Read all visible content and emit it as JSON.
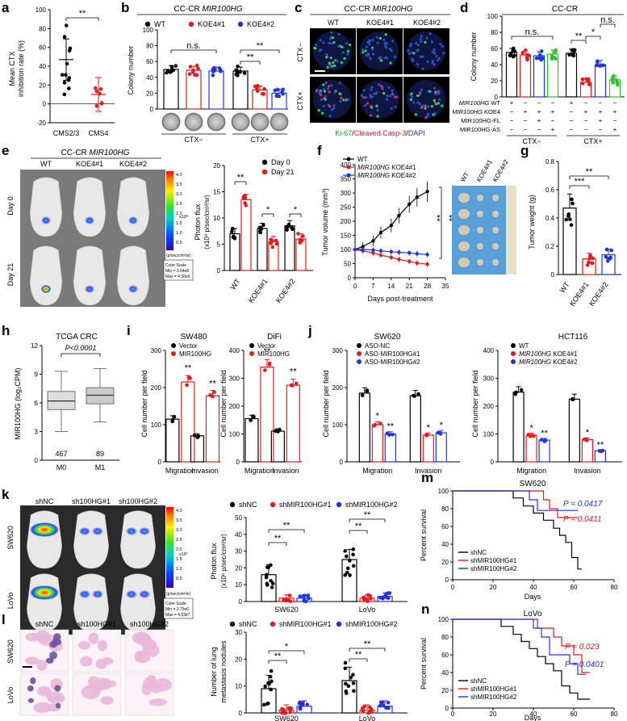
{
  "panels": {
    "a": "a",
    "b": "b",
    "c": "c",
    "d": "d",
    "e": "e",
    "f": "f",
    "g": "g",
    "h": "h",
    "i": "i",
    "j": "j",
    "k": "k",
    "l": "l",
    "m": "m",
    "n": "n"
  },
  "colors": {
    "wt": "#000000",
    "koe1": "#e8191c",
    "koe2": "#2233dd",
    "green": "#30c030",
    "shnc": "#000000",
    "sh1": "#e8191c",
    "sh2": "#2233dd",
    "fl_green": "#39d353",
    "fl_red": "#e0306a",
    "fl_blue": "#2f4fbf"
  },
  "sig": {
    "dstar": "**",
    "star": "*",
    "tstar": "***",
    "ns": "n.s."
  },
  "panel_a": {
    "ylabel1": "Mean CTX",
    "ylabel2": "inhibition rate (%)",
    "categories": [
      "CMS2/3",
      "CMS4"
    ]
  },
  "panel_b": {
    "title": "CC-CR MIR100HG",
    "title_plain": "CC-CR ",
    "title_italic": "MIR100HG",
    "legend": [
      "WT",
      "KOE4#1",
      "KOE4#2"
    ],
    "ylabel": "Colony number",
    "group_labels": [
      "CTX−",
      "CTX+"
    ]
  },
  "panel_c": {
    "title_plain": "CC-CR ",
    "title_italic": "MIR100HG",
    "cols": [
      "WT",
      "KOE4#1",
      "KOE4#2"
    ],
    "rows": [
      "CTX−",
      "CTX+"
    ],
    "stain1": "Ki-67",
    "stain2": "Cleaved Casp-3",
    "stain3": "DAPI"
  },
  "panel_d": {
    "title": "CC-CR",
    "ylabel": "Colony number",
    "row_labels": [
      {
        "italic": "MIR100HG",
        "plain": " WT"
      },
      {
        "italic": "MIR100HG",
        "plain": " KOE4"
      },
      {
        "italic": "",
        "plain": "MIR100HG-FL"
      },
      {
        "italic": "",
        "plain": "MIR100HG-AS"
      }
    ],
    "matrix": [
      [
        "+",
        "−",
        "−",
        "−",
        "+",
        "−",
        "−",
        "−"
      ],
      [
        "−",
        "+",
        "+",
        "+",
        "−",
        "+",
        "+",
        "+"
      ],
      [
        "−",
        "−",
        "+",
        "−",
        "−",
        "−",
        "+",
        "−"
      ],
      [
        "−",
        "−",
        "−",
        "+",
        "−",
        "−",
        "−",
        "+"
      ]
    ],
    "group_labels": [
      "CTX−",
      "CTX+"
    ]
  },
  "panel_e": {
    "title_plain": "CC-CR ",
    "title_italic": "MIR100HG",
    "cols": [
      "WT",
      "KOE4#1",
      "KOE4#2"
    ],
    "rows": [
      "Day 0",
      "Day 21"
    ],
    "scale_unit": "x10⁸",
    "scale_ticks": [
      "4.0",
      "3.5",
      "3.0",
      "2.5",
      "2.0",
      "1.5",
      "1.0",
      "0.5"
    ],
    "scale_caption": "(p/sec/cm²/sr)",
    "color_scale_1": "Color Scale",
    "color_scale_2": "Min = 3.64e8",
    "color_scale_3": "Max = 4.56e9",
    "legend": [
      "Day 0",
      "Day 21"
    ],
    "ylabel1": "Photon flux",
    "ylabel2": "(x10⁸ p/sec/cm²/sr)",
    "categories": [
      "WT",
      "KOE4#1",
      "KOE4#2"
    ]
  },
  "panel_f": {
    "legend": [
      {
        "italic": "",
        "plain": "WT"
      },
      {
        "italic": "MIR100HG",
        "plain": " KOE4#1"
      },
      {
        "italic": "MIR100HG",
        "plain": " KOE4#2"
      }
    ],
    "ylabel": "Tumor volume (mm³)",
    "xlabel": "Days post-treatment",
    "photo_labels": [
      "WT",
      "KOE4#1",
      "KOE4#2"
    ]
  },
  "panel_g": {
    "ylabel": "Tumor weight (g)",
    "categories": [
      "WT",
      "KOE4#1",
      "KOE4#2"
    ]
  },
  "panel_h": {
    "title": "TCGA CRC",
    "ylabel": "MIR100HG (log₂CPM)",
    "pvalue": "P<0.0001",
    "categories": [
      "M0",
      "M1"
    ],
    "counts": [
      "467",
      "89"
    ]
  },
  "panel_i": {
    "titles": [
      "SW480",
      "DiFi"
    ],
    "legend": [
      "Vector",
      "MIR100HG"
    ],
    "ylabel": "Cell number per field",
    "categories": [
      "Migration",
      "Invasion"
    ]
  },
  "panel_j": {
    "titles": [
      "SW620",
      "HCT116"
    ],
    "legend_left": [
      "ASO-NC",
      "ASO-MIR100HG#1",
      "ASO-MIR100HG#2"
    ],
    "legend_right": [
      {
        "italic": "",
        "plain": "WT"
      },
      {
        "italic": "MIR100HG",
        "plain": " KOE4#1"
      },
      {
        "italic": "MIR100HG",
        "plain": " KOE4#2"
      }
    ],
    "ylabel": "Cell number per field",
    "categories": [
      "Migration",
      "Invasion"
    ]
  },
  "panel_k": {
    "cols": [
      "shNC",
      "sh100HG#1",
      "sh100HG#2"
    ],
    "rows": [
      "SW620",
      "LoVo"
    ],
    "scale_unit": "x10⁷",
    "scale_ticks": [
      "4.0",
      "3.5",
      "3.0",
      "2.5",
      "2.0",
      "1.5",
      "1.0",
      "0.5"
    ],
    "scale_caption": "(p/sec/cm²/sr)",
    "color_scale_1": "Color Scale",
    "color_scale_2": "Min = 2.75e6",
    "color_scale_3": "Max = 4.03e7",
    "legend": [
      "shNC",
      "shMIR100HG#1",
      "shMIR100HG#2"
    ],
    "ylabel1": "Photon flux",
    "ylabel2": "(x10⁶ p/sec/cm²/sr)",
    "categories": [
      "SW620",
      "LoVo"
    ]
  },
  "panel_l": {
    "cols": [
      "shNC",
      "sh100HG#1",
      "sh100HG#2"
    ],
    "rows": [
      "SW620",
      "LoVo"
    ],
    "legend": [
      "shNC",
      "shMIR100HG#1",
      "shMIR100HG#2"
    ],
    "ylabel1": "Number of lung",
    "ylabel2": "metastasis nodules",
    "categories": [
      "SW620",
      "LoVo"
    ]
  },
  "panel_m": {
    "title": "SW620",
    "ylabel": "Percent survival",
    "xlabel": "Days",
    "legend": [
      "shNC",
      "shMIR100HG#1",
      "shMIR100HG#2"
    ],
    "p_blue": "P = 0.0417",
    "p_red": "P = 0.0411"
  },
  "panel_n": {
    "title": "LoVo",
    "ylabel": "Percent survival",
    "xlabel": "Days",
    "legend": [
      "shNC",
      "shMIR100HG#1",
      "shMIR100HG#2"
    ],
    "p_red": "P = 0.023",
    "p_blue": "P = 0.0401"
  },
  "chart_data": [
    {
      "panel": "a",
      "type": "scatter",
      "categories": [
        "CMS2/3",
        "CMS4"
      ],
      "means": [
        47,
        10
      ],
      "sd": [
        22,
        18
      ],
      "ylim": [
        -20,
        100
      ],
      "yticks": [
        -20,
        0,
        20,
        40,
        60,
        80,
        100
      ]
    },
    {
      "panel": "b",
      "type": "bar",
      "groups": [
        "CTX−",
        "CTX+"
      ],
      "series": [
        {
          "name": "WT",
          "values": [
            50,
            48
          ]
        },
        {
          "name": "KOE4#1",
          "values": [
            49,
            24
          ]
        },
        {
          "name": "KOE4#2",
          "values": [
            48,
            20
          ]
        }
      ],
      "ylim": [
        0,
        100
      ],
      "yticks": [
        0,
        20,
        40,
        60,
        80,
        100
      ]
    },
    {
      "panel": "d",
      "type": "bar",
      "values": [
        55,
        52,
        51,
        53,
        54,
        18,
        40,
        21
      ],
      "ylim": [
        0,
        100
      ],
      "yticks": [
        0,
        20,
        40,
        60,
        80,
        100
      ]
    },
    {
      "panel": "e",
      "type": "bar",
      "categories": [
        "WT",
        "KOE4#1",
        "KOE4#2"
      ],
      "series": [
        {
          "name": "Day 0",
          "values": [
            7,
            8,
            8.5
          ]
        },
        {
          "name": "Day 21",
          "values": [
            13.5,
            5.5,
            6
          ]
        }
      ],
      "ylim": [
        0,
        20
      ],
      "yticks": [
        0,
        5,
        10,
        15,
        20
      ]
    },
    {
      "panel": "f",
      "type": "line",
      "x": [
        0,
        3,
        7,
        10,
        14,
        17,
        21,
        24,
        28
      ],
      "series": [
        {
          "name": "WT",
          "values": [
            100,
            110,
            130,
            160,
            185,
            220,
            260,
            285,
            305
          ]
        },
        {
          "name": "KOE4#1",
          "values": [
            100,
            95,
            88,
            80,
            72,
            65,
            58,
            52,
            48
          ]
        },
        {
          "name": "KOE4#2",
          "values": [
            100,
            100,
            98,
            95,
            92,
            90,
            88,
            85,
            82
          ]
        }
      ],
      "xlim": [
        0,
        35
      ],
      "xticks": [
        0,
        7,
        14,
        21,
        28,
        35
      ],
      "ylim": [
        0,
        400
      ],
      "yticks": [
        0,
        50,
        100,
        150,
        200,
        250,
        300,
        350,
        400
      ]
    },
    {
      "panel": "g",
      "type": "bar",
      "categories": [
        "WT",
        "KOE4#1",
        "KOE4#2"
      ],
      "values": [
        0.47,
        0.11,
        0.14
      ],
      "ylim": [
        0,
        0.8
      ],
      "yticks": [
        0,
        0.2,
        0.4,
        0.6,
        0.8
      ]
    },
    {
      "panel": "h",
      "type": "box",
      "categories": [
        "M0",
        "M1"
      ],
      "median": [
        6.2,
        6.8
      ],
      "q1": [
        5.3,
        5.9
      ],
      "q3": [
        7.2,
        7.6
      ],
      "whisker_low": [
        3.0,
        4.0
      ],
      "whisker_high": [
        9.3,
        9.6
      ],
      "ylim": [
        0,
        12
      ],
      "yticks": [
        0,
        3,
        6,
        9,
        12
      ]
    },
    {
      "panel": "i-SW480",
      "type": "bar",
      "categories": [
        "Migration",
        "Invasion"
      ],
      "series": [
        {
          "name": "Vector",
          "values": [
            115,
            70
          ]
        },
        {
          "name": "MIR100HG",
          "values": [
            215,
            178
          ]
        }
      ],
      "ylim": [
        0,
        300
      ],
      "yticks": [
        0,
        100,
        200,
        300
      ]
    },
    {
      "panel": "i-DiFi",
      "type": "bar",
      "categories": [
        "Migration",
        "Invasion"
      ],
      "series": [
        {
          "name": "Vector",
          "values": [
            155,
            110
          ]
        },
        {
          "name": "MIR100HG",
          "values": [
            340,
            275
          ]
        }
      ],
      "ylim": [
        0,
        400
      ],
      "yticks": [
        0,
        100,
        200,
        300,
        400
      ]
    },
    {
      "panel": "j-SW620",
      "type": "bar",
      "categories": [
        "Migration",
        "Invasion"
      ],
      "series": [
        {
          "name": "ASO-NC",
          "values": [
            185,
            178
          ]
        },
        {
          "name": "ASO-MIR100HG#1",
          "values": [
            100,
            72
          ]
        },
        {
          "name": "ASO-MIR100HG#2",
          "values": [
            75,
            78
          ]
        }
      ],
      "ylim": [
        0,
        300
      ],
      "yticks": [
        0,
        100,
        200,
        300
      ]
    },
    {
      "panel": "j-HCT116",
      "type": "bar",
      "categories": [
        "Migration",
        "Invasion"
      ],
      "series": [
        {
          "name": "WT",
          "values": [
            250,
            225
          ]
        },
        {
          "name": "KOE4#1",
          "values": [
            95,
            80
          ]
        },
        {
          "name": "KOE4#2",
          "values": [
            78,
            40
          ]
        }
      ],
      "ylim": [
        0,
        400
      ],
      "yticks": [
        0,
        100,
        200,
        300,
        400
      ]
    },
    {
      "panel": "k",
      "type": "bar",
      "categories": [
        "SW620",
        "LoVo"
      ],
      "series": [
        {
          "name": "shNC",
          "values": [
            16,
            25
          ]
        },
        {
          "name": "shMIR100HG#1",
          "values": [
            2,
            2
          ]
        },
        {
          "name": "shMIR100HG#2",
          "values": [
            2,
            3
          ]
        }
      ],
      "ylim": [
        0,
        50
      ],
      "yticks": [
        0,
        10,
        20,
        30,
        40,
        50
      ]
    },
    {
      "panel": "l",
      "type": "bar",
      "categories": [
        "SW620",
        "LoVo"
      ],
      "series": [
        {
          "name": "shNC",
          "values": [
            9,
            12
          ]
        },
        {
          "name": "shMIR100HG#1",
          "values": [
            1,
            1
          ]
        },
        {
          "name": "shMIR100HG#2",
          "values": [
            2.5,
            2.5
          ]
        }
      ],
      "ylim": [
        0,
        30
      ],
      "yticks": [
        0,
        10,
        20,
        30
      ]
    },
    {
      "panel": "m",
      "type": "line",
      "series": [
        {
          "name": "shNC",
          "points": [
            [
              0,
              100
            ],
            [
              30,
              100
            ],
            [
              30,
              92
            ],
            [
              35,
              92
            ],
            [
              35,
              83
            ],
            [
              40,
              83
            ],
            [
              40,
              75
            ],
            [
              45,
              75
            ],
            [
              45,
              67
            ],
            [
              50,
              67
            ],
            [
              50,
              58
            ],
            [
              53,
              58
            ],
            [
              53,
              50
            ],
            [
              56,
              50
            ],
            [
              56,
              42
            ],
            [
              59,
              42
            ],
            [
              59,
              25
            ],
            [
              62,
              25
            ],
            [
              62,
              12
            ],
            [
              64,
              12
            ]
          ]
        },
        {
          "name": "shMIR100HG#1",
          "points": [
            [
              0,
              100
            ],
            [
              45,
              100
            ],
            [
              45,
              90
            ],
            [
              48,
              90
            ],
            [
              48,
              80
            ],
            [
              52,
              80
            ],
            [
              52,
              70
            ],
            [
              62,
              70
            ]
          ]
        },
        {
          "name": "shMIR100HG#2",
          "points": [
            [
              0,
              100
            ],
            [
              38,
              100
            ],
            [
              38,
              90
            ],
            [
              42,
              90
            ],
            [
              42,
              78
            ],
            [
              62,
              78
            ]
          ]
        }
      ],
      "xlim": [
        0,
        80
      ],
      "xticks": [
        0,
        20,
        40,
        60,
        80
      ],
      "ylim": [
        0,
        100
      ],
      "yticks": [
        0,
        20,
        40,
        60,
        80,
        100
      ]
    },
    {
      "panel": "n",
      "type": "line",
      "series": [
        {
          "name": "shNC",
          "points": [
            [
              0,
              100
            ],
            [
              24,
              100
            ],
            [
              24,
              92
            ],
            [
              30,
              92
            ],
            [
              30,
              83
            ],
            [
              34,
              83
            ],
            [
              34,
              75
            ],
            [
              38,
              75
            ],
            [
              38,
              67
            ],
            [
              42,
              67
            ],
            [
              42,
              58
            ],
            [
              46,
              58
            ],
            [
              46,
              50
            ],
            [
              50,
              50
            ],
            [
              50,
              42
            ],
            [
              54,
              42
            ],
            [
              54,
              25
            ],
            [
              58,
              25
            ],
            [
              58,
              17
            ],
            [
              62,
              17
            ],
            [
              62,
              10
            ],
            [
              68,
              10
            ]
          ]
        },
        {
          "name": "shMIR100HG#1",
          "points": [
            [
              0,
              100
            ],
            [
              42,
              100
            ],
            [
              42,
              90
            ],
            [
              50,
              90
            ],
            [
              50,
              80
            ],
            [
              54,
              80
            ],
            [
              54,
              70
            ],
            [
              60,
              70
            ],
            [
              60,
              60
            ],
            [
              64,
              60
            ],
            [
              64,
              40
            ],
            [
              68,
              40
            ]
          ]
        },
        {
          "name": "shMIR100HG#2",
          "points": [
            [
              0,
              100
            ],
            [
              40,
              100
            ],
            [
              40,
              90
            ],
            [
              44,
              90
            ],
            [
              44,
              80
            ],
            [
              48,
              80
            ],
            [
              48,
              60
            ],
            [
              58,
              60
            ],
            [
              58,
              50
            ],
            [
              62,
              50
            ],
            [
              62,
              38
            ],
            [
              66,
              38
            ]
          ]
        }
      ],
      "xlim": [
        0,
        80
      ],
      "xticks": [
        0,
        20,
        40,
        60,
        80
      ],
      "ylim": [
        0,
        100
      ],
      "yticks": [
        0,
        20,
        40,
        60,
        80,
        100
      ]
    }
  ]
}
